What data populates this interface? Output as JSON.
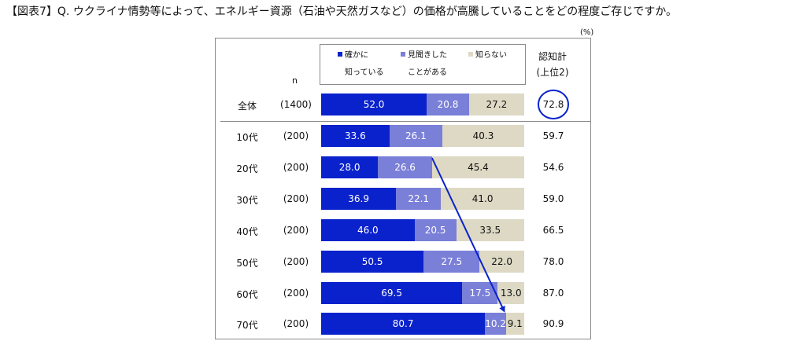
{
  "title": "【図表7】Q. ウクライナ情勢等によって、エネルギー資源（石油や天然ガスなど）の価格が高騰していることをどの程度ご存じですか。",
  "unit": "(%)",
  "legend": [
    {
      "line1": "確かに",
      "line2": "知っている",
      "color": "#0a22cc"
    },
    {
      "line1": "見聞きした",
      "line2": "ことがある",
      "color": "#7a7fd8"
    },
    {
      "line1": "知らない",
      "line2": "",
      "color": "#ddd9c4"
    }
  ],
  "n_header": "n",
  "awareness_header_line1": "認知計",
  "awareness_header_line2": "(上位2)",
  "chart_data": {
    "type": "bar",
    "orientation": "horizontal",
    "stacked": true,
    "normalized_to": 100,
    "categories": [
      "全体",
      "10代",
      "20代",
      "30代",
      "40代",
      "50代",
      "60代",
      "70代"
    ],
    "n": [
      "(1400)",
      "(200)",
      "(200)",
      "(200)",
      "(200)",
      "(200)",
      "(200)",
      "(200)"
    ],
    "series": [
      {
        "name": "確かに知っている",
        "color": "#0a22cc",
        "text_color": "#ffffff",
        "values": [
          52.0,
          33.6,
          28.0,
          36.9,
          46.0,
          50.5,
          69.5,
          80.7
        ]
      },
      {
        "name": "見聞きしたことがある",
        "color": "#7a7fd8",
        "text_color": "#ffffff",
        "values": [
          20.8,
          26.1,
          26.6,
          22.1,
          20.5,
          27.5,
          17.5,
          10.2
        ]
      },
      {
        "name": "知らない",
        "color": "#ddd9c4",
        "text_color": "#111111",
        "values": [
          27.2,
          40.3,
          45.4,
          41.0,
          33.5,
          22.0,
          13.0,
          9.1
        ]
      }
    ],
    "awareness_top2": [
      "72.8",
      "59.7",
      "54.6",
      "59.0",
      "66.5",
      "78.0",
      "87.0",
      "90.9"
    ],
    "highlight": {
      "row": "全体",
      "value": "72.8",
      "shape": "circle",
      "color": "#0a22cc"
    },
    "annotation_arrow": {
      "from_row": "20代",
      "from_value": 54.6,
      "to_row": "70代",
      "to_value": 90.9,
      "color": "#0a22cc"
    }
  }
}
